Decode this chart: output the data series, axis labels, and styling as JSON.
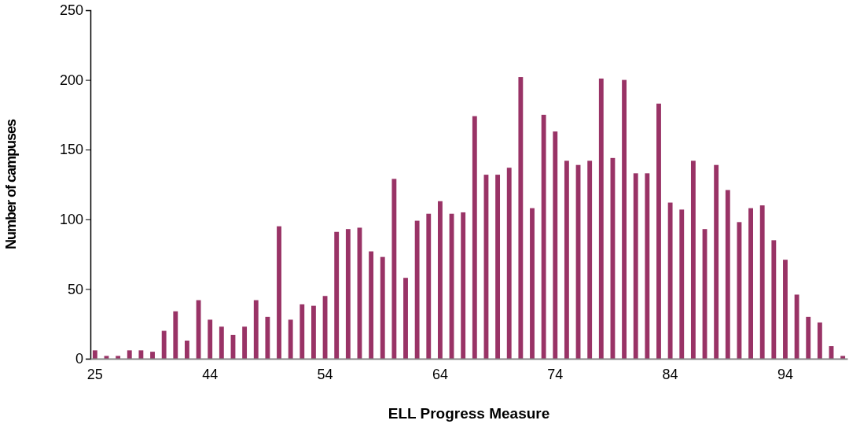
{
  "chart_data": {
    "type": "bar",
    "xlabel": "ELL Progress Measure",
    "ylabel": "Number of campuses",
    "categories": [
      "25",
      null,
      null,
      null,
      null,
      null,
      null,
      null,
      null,
      null,
      "44",
      null,
      null,
      null,
      null,
      null,
      null,
      null,
      null,
      null,
      "54",
      null,
      null,
      null,
      null,
      null,
      null,
      null,
      null,
      null,
      "64",
      null,
      null,
      null,
      null,
      null,
      null,
      null,
      null,
      null,
      "74",
      null,
      null,
      null,
      null,
      null,
      null,
      null,
      null,
      null,
      "84",
      null,
      null,
      null,
      null,
      null,
      null,
      null,
      null,
      null,
      "94",
      null,
      null,
      null,
      null,
      null
    ],
    "values": [
      6,
      2,
      2,
      6,
      6,
      5,
      20,
      34,
      13,
      42,
      28,
      23,
      17,
      23,
      42,
      30,
      95,
      28,
      39,
      38,
      45,
      91,
      93,
      94,
      77,
      73,
      129,
      58,
      99,
      104,
      113,
      104,
      105,
      174,
      132,
      132,
      137,
      202,
      108,
      175,
      163,
      142,
      139,
      142,
      201,
      144,
      200,
      133,
      133,
      183,
      112,
      107,
      142,
      93,
      139,
      121,
      98,
      108,
      110,
      85,
      71,
      46,
      30,
      26,
      9,
      2
    ],
    "color": "#993366",
    "ylim": [
      0,
      250
    ],
    "yticks": [
      0,
      50,
      100,
      150,
      200,
      250
    ]
  }
}
